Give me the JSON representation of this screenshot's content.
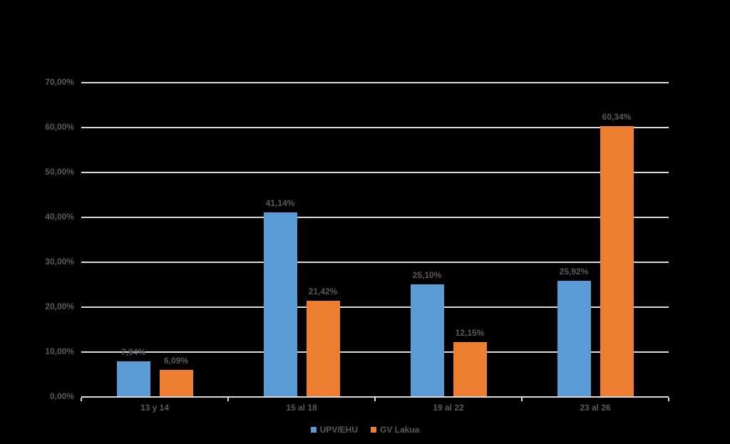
{
  "background_color": "#000000",
  "chart_data": {
    "type": "bar",
    "title": "",
    "categories": [
      "13 y 14",
      "15 al 18",
      "19 al 22",
      "23 al 26"
    ],
    "series": [
      {
        "name": "UPV/EHU",
        "color": "#5b9bd5",
        "values": [
          7.94,
          41.14,
          25.1,
          25.92
        ],
        "data_labels": [
          "7,94%",
          "41,14%",
          "25,10%",
          "25,92%"
        ]
      },
      {
        "name": "GV Lakua",
        "color": "#ed7d31",
        "values": [
          6.09,
          21.42,
          12.15,
          60.34
        ],
        "data_labels": [
          "6,09%",
          "21,42%",
          "12,15%",
          "60,34%"
        ]
      }
    ],
    "y_axis": {
      "min": 0,
      "max": 70,
      "step": 10,
      "tick_labels": [
        "0,00%",
        "10,00%",
        "20,00%",
        "30,00%",
        "40,00%",
        "50,00%",
        "60,00%",
        "70,00%"
      ]
    },
    "x_axis": {
      "tick_labels": [
        "13 y 14",
        "15 al 18",
        "19 al 22",
        "23 al 26"
      ]
    },
    "grid": true,
    "legend_position": "bottom",
    "legend_entries": [
      "UPV/EHU",
      "GV Lakua"
    ],
    "text_color": "#595959",
    "gridline_color": "#d9d9d9"
  }
}
